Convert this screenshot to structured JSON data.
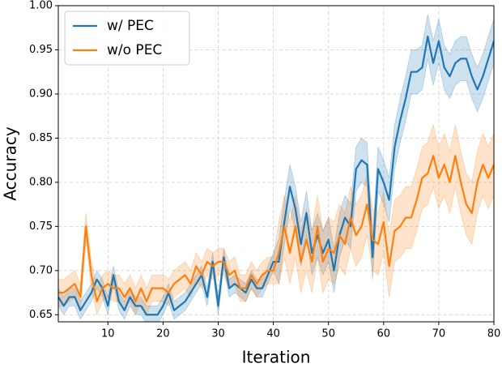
{
  "chart_data": {
    "type": "line",
    "xlabel": "Iteration",
    "ylabel": "Accuracy",
    "x": [
      1,
      2,
      3,
      4,
      5,
      6,
      7,
      8,
      9,
      10,
      11,
      12,
      13,
      14,
      15,
      16,
      17,
      18,
      19,
      20,
      21,
      22,
      23,
      24,
      25,
      26,
      27,
      28,
      29,
      30,
      31,
      32,
      33,
      34,
      35,
      36,
      37,
      38,
      39,
      40,
      41,
      42,
      43,
      44,
      45,
      46,
      47,
      48,
      49,
      50,
      51,
      52,
      53,
      54,
      55,
      56,
      57,
      58,
      59,
      60,
      61,
      62,
      63,
      64,
      65,
      66,
      67,
      68,
      69,
      70,
      71,
      72,
      73,
      74,
      75,
      76,
      77,
      78,
      79,
      80
    ],
    "xlim": [
      1,
      80
    ],
    "xticks": [
      10,
      20,
      30,
      40,
      50,
      60,
      70,
      80
    ],
    "ylim": [
      0.642,
      1.0
    ],
    "yticks": [
      0.65,
      {
        "value": 0.7,
        "label": "0.70"
      },
      0.75,
      {
        "value": 0.8,
        "label": "0.80"
      },
      0.85,
      {
        "value": 0.9,
        "label": "0.90"
      },
      0.95,
      {
        "value": 1.0,
        "label": "1.00"
      }
    ],
    "grid": true,
    "legend": "upper left",
    "series": [
      {
        "name": "w/ PEC",
        "color": "#1f77b4",
        "values": [
          0.67,
          0.66,
          0.67,
          0.67,
          0.655,
          0.665,
          0.675,
          0.69,
          0.68,
          0.66,
          0.695,
          0.665,
          0.655,
          0.67,
          0.66,
          0.66,
          0.65,
          0.65,
          0.65,
          0.66,
          0.675,
          0.655,
          0.66,
          0.665,
          0.675,
          0.685,
          0.695,
          0.67,
          0.71,
          0.66,
          0.715,
          0.68,
          0.685,
          0.68,
          0.675,
          0.69,
          0.68,
          0.68,
          0.695,
          0.71,
          0.71,
          0.755,
          0.795,
          0.77,
          0.73,
          0.765,
          0.72,
          0.74,
          0.72,
          0.735,
          0.7,
          0.74,
          0.76,
          0.75,
          0.815,
          0.825,
          0.82,
          0.715,
          0.815,
          0.8,
          0.78,
          0.84,
          0.87,
          0.895,
          0.925,
          0.925,
          0.93,
          0.965,
          0.935,
          0.96,
          0.93,
          0.92,
          0.935,
          0.94,
          0.94,
          0.92,
          0.905,
          0.92,
          0.94,
          0.96
        ],
        "lower": [
          0.66,
          0.65,
          0.66,
          0.66,
          0.645,
          0.655,
          0.665,
          0.68,
          0.67,
          0.65,
          0.685,
          0.655,
          0.645,
          0.66,
          0.65,
          0.65,
          0.64,
          0.64,
          0.64,
          0.65,
          0.665,
          0.645,
          0.65,
          0.655,
          0.665,
          0.675,
          0.685,
          0.66,
          0.7,
          0.65,
          0.705,
          0.67,
          0.675,
          0.67,
          0.665,
          0.68,
          0.67,
          0.67,
          0.685,
          0.7,
          0.685,
          0.73,
          0.77,
          0.745,
          0.705,
          0.74,
          0.695,
          0.715,
          0.695,
          0.71,
          0.675,
          0.715,
          0.735,
          0.725,
          0.79,
          0.8,
          0.795,
          0.69,
          0.79,
          0.775,
          0.755,
          0.815,
          0.845,
          0.87,
          0.9,
          0.9,
          0.905,
          0.94,
          0.91,
          0.935,
          0.905,
          0.895,
          0.91,
          0.915,
          0.915,
          0.895,
          0.88,
          0.895,
          0.915,
          0.935
        ],
        "upper": [
          0.68,
          0.67,
          0.68,
          0.68,
          0.665,
          0.675,
          0.685,
          0.7,
          0.69,
          0.67,
          0.705,
          0.675,
          0.665,
          0.68,
          0.67,
          0.67,
          0.66,
          0.66,
          0.66,
          0.67,
          0.685,
          0.665,
          0.67,
          0.675,
          0.685,
          0.695,
          0.705,
          0.68,
          0.72,
          0.67,
          0.725,
          0.69,
          0.695,
          0.69,
          0.685,
          0.7,
          0.69,
          0.69,
          0.705,
          0.72,
          0.735,
          0.78,
          0.82,
          0.795,
          0.755,
          0.79,
          0.745,
          0.765,
          0.745,
          0.76,
          0.725,
          0.765,
          0.785,
          0.775,
          0.84,
          0.85,
          0.845,
          0.74,
          0.84,
          0.825,
          0.805,
          0.865,
          0.895,
          0.92,
          0.95,
          0.95,
          0.955,
          0.99,
          0.96,
          0.985,
          0.955,
          0.945,
          0.96,
          0.965,
          0.965,
          0.945,
          0.93,
          0.945,
          0.965,
          0.985
        ]
      },
      {
        "name": "w/o PEC",
        "color": "#ff7f0e",
        "values": [
          0.675,
          0.675,
          0.68,
          0.685,
          0.67,
          0.75,
          0.695,
          0.665,
          0.68,
          0.685,
          0.68,
          0.68,
          0.67,
          0.68,
          0.665,
          0.68,
          0.665,
          0.68,
          0.68,
          0.68,
          0.675,
          0.685,
          0.69,
          0.695,
          0.685,
          0.705,
          0.695,
          0.71,
          0.705,
          0.71,
          0.71,
          0.695,
          0.7,
          0.68,
          0.68,
          0.695,
          0.685,
          0.695,
          0.7,
          0.7,
          0.72,
          0.75,
          0.72,
          0.75,
          0.71,
          0.735,
          0.71,
          0.75,
          0.71,
          0.725,
          0.72,
          0.74,
          0.73,
          0.76,
          0.74,
          0.75,
          0.775,
          0.735,
          0.73,
          0.755,
          0.705,
          0.745,
          0.75,
          0.76,
          0.76,
          0.78,
          0.805,
          0.81,
          0.83,
          0.805,
          0.82,
          0.8,
          0.83,
          0.8,
          0.775,
          0.765,
          0.8,
          0.82,
          0.805,
          0.82
        ],
        "lower": [
          0.66,
          0.66,
          0.665,
          0.67,
          0.655,
          0.735,
          0.68,
          0.65,
          0.665,
          0.67,
          0.665,
          0.665,
          0.655,
          0.665,
          0.65,
          0.665,
          0.65,
          0.665,
          0.665,
          0.665,
          0.66,
          0.67,
          0.675,
          0.68,
          0.67,
          0.69,
          0.68,
          0.695,
          0.69,
          0.695,
          0.695,
          0.68,
          0.685,
          0.665,
          0.665,
          0.68,
          0.67,
          0.68,
          0.685,
          0.685,
          0.685,
          0.715,
          0.685,
          0.715,
          0.675,
          0.7,
          0.675,
          0.715,
          0.675,
          0.69,
          0.685,
          0.705,
          0.695,
          0.725,
          0.705,
          0.715,
          0.74,
          0.7,
          0.695,
          0.72,
          0.67,
          0.71,
          0.715,
          0.725,
          0.725,
          0.745,
          0.77,
          0.775,
          0.795,
          0.77,
          0.785,
          0.765,
          0.795,
          0.765,
          0.74,
          0.73,
          0.765,
          0.785,
          0.77,
          0.785
        ],
        "upper": [
          0.69,
          0.69,
          0.695,
          0.7,
          0.685,
          0.765,
          0.71,
          0.68,
          0.695,
          0.7,
          0.695,
          0.695,
          0.685,
          0.695,
          0.68,
          0.695,
          0.68,
          0.695,
          0.695,
          0.695,
          0.69,
          0.7,
          0.705,
          0.71,
          0.7,
          0.72,
          0.71,
          0.725,
          0.72,
          0.725,
          0.725,
          0.71,
          0.715,
          0.695,
          0.695,
          0.71,
          0.7,
          0.71,
          0.715,
          0.715,
          0.755,
          0.785,
          0.755,
          0.785,
          0.745,
          0.77,
          0.745,
          0.785,
          0.745,
          0.76,
          0.755,
          0.775,
          0.765,
          0.795,
          0.775,
          0.785,
          0.81,
          0.77,
          0.765,
          0.79,
          0.74,
          0.78,
          0.785,
          0.795,
          0.795,
          0.815,
          0.84,
          0.845,
          0.865,
          0.84,
          0.855,
          0.835,
          0.865,
          0.835,
          0.81,
          0.8,
          0.835,
          0.855,
          0.84,
          0.855
        ]
      }
    ]
  }
}
